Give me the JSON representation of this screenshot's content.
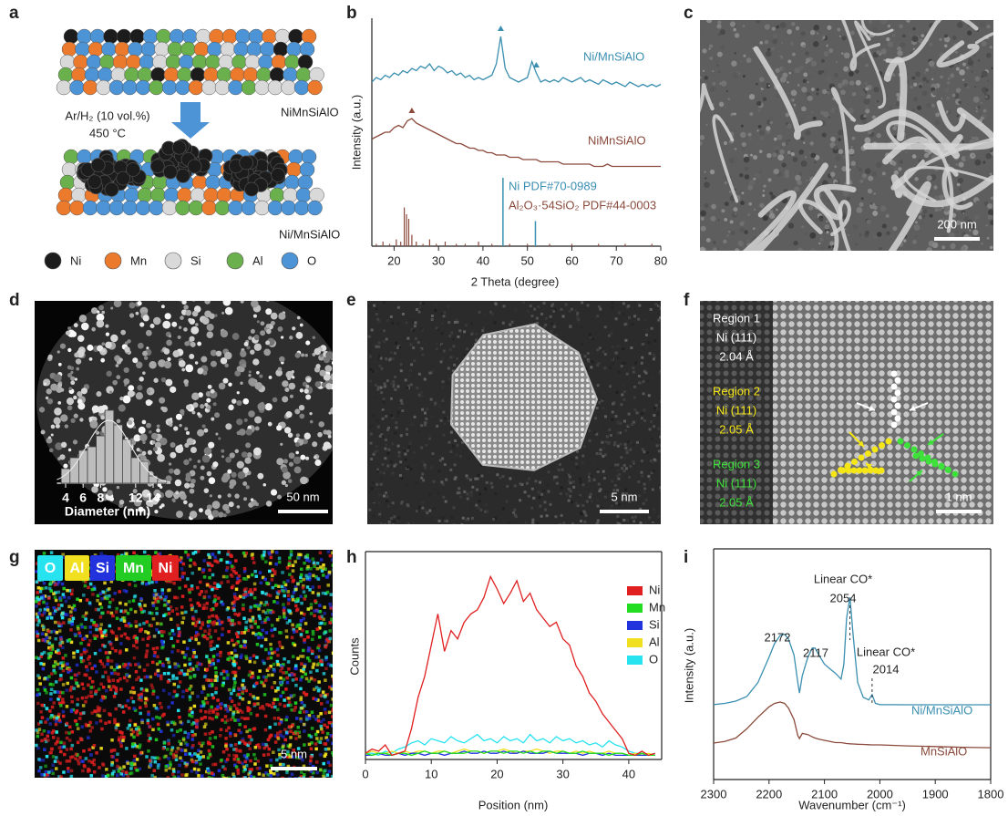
{
  "panel_labels": [
    "a",
    "b",
    "c",
    "d",
    "e",
    "f",
    "g",
    "h",
    "i"
  ],
  "schematic": {
    "top_label": "NiMnSiAlO",
    "condition": [
      "Ar/H₂ (10 vol.%)",
      "450 °C"
    ],
    "bottom_label": "Ni/MnSiAlO",
    "legend": [
      {
        "name": "Ni",
        "color": "#1c1c1c"
      },
      {
        "name": "Mn",
        "color": "#ec7a2c"
      },
      {
        "name": "Si",
        "color": "#d9d9d9"
      },
      {
        "name": "Al",
        "color": "#6ab04c"
      },
      {
        "name": "O",
        "color": "#4d94d6"
      }
    ]
  },
  "chart_data": [
    {
      "type": "line",
      "xlabel": "2 Theta (degree)",
      "ylabel": "Intensity (a.u.)",
      "xlim": [
        15,
        80
      ],
      "ylim": [
        0,
        100
      ],
      "xticks": [
        20,
        30,
        40,
        50,
        60,
        70,
        80
      ],
      "frame": false,
      "x": [
        15,
        16,
        17,
        18,
        19,
        20,
        21,
        22,
        23,
        24,
        25,
        26,
        27,
        28,
        29,
        30,
        31,
        32,
        33,
        34,
        35,
        36,
        37,
        38,
        39,
        40,
        41,
        42,
        43,
        44,
        45,
        46,
        47,
        48,
        49,
        50,
        51,
        52,
        53,
        54,
        55,
        56,
        57,
        58,
        59,
        60,
        61,
        62,
        63,
        64,
        65,
        66,
        67,
        68,
        69,
        70,
        71,
        72,
        73,
        74,
        75,
        76,
        77,
        78,
        79,
        80
      ],
      "series": [
        {
          "name": "Ni/MnSiAlO",
          "color": "#3b8fb0",
          "markers": [
            44,
            52
          ],
          "values": [
            72,
            74,
            73,
            75,
            74,
            76,
            75,
            77,
            76,
            78,
            77,
            79,
            78,
            80,
            77,
            79,
            78,
            76,
            77,
            75,
            76,
            74,
            75,
            73,
            74,
            73,
            74,
            75,
            80,
            92,
            78,
            74,
            73,
            72,
            73,
            74,
            81,
            76,
            72,
            73,
            72,
            73,
            72,
            74,
            73,
            72,
            73,
            74,
            72,
            73,
            72,
            71,
            73,
            72,
            71,
            72,
            71,
            70,
            72,
            71,
            70,
            71,
            70,
            71,
            70,
            71
          ]
        },
        {
          "name": "NiMnSiAlO",
          "color": "#8b4a3c",
          "markers": [
            24
          ],
          "values": [
            47,
            48,
            49,
            50,
            50,
            52,
            53,
            52,
            55,
            56,
            54,
            53,
            52,
            51,
            50,
            49,
            48,
            47,
            46,
            45,
            45,
            44,
            43,
            43,
            42,
            42,
            41,
            41,
            40,
            40,
            40,
            39,
            39,
            39,
            38,
            38,
            38,
            38,
            37,
            37,
            37,
            37,
            37,
            36,
            36,
            36,
            36,
            36,
            36,
            36,
            35,
            35,
            35,
            36,
            35,
            35,
            35,
            35,
            35,
            35,
            35,
            35,
            35,
            35,
            35,
            35
          ]
        }
      ],
      "references": [
        {
          "name": "Ni PDF#70-0989",
          "color": "#3b8fb0",
          "x": [
            44.5,
            51.8
          ],
          "values": [
            30,
            11
          ]
        },
        {
          "name": "Al₂O₃·54SiO₂ PDF#44-0003",
          "color": "#8b4a3c",
          "x": [
            16,
            17.5,
            19,
            20.5,
            21.5,
            22.3,
            22.8,
            23.3,
            24,
            25,
            26.5,
            28,
            29.5,
            31.5,
            34,
            36,
            39,
            42,
            46,
            50,
            55,
            60,
            66,
            72,
            78
          ],
          "values": [
            1,
            2,
            1,
            3,
            2,
            17,
            14,
            12,
            5,
            2,
            1,
            3,
            1,
            2,
            1,
            1,
            2,
            1,
            1,
            1,
            1,
            1,
            1,
            1,
            1
          ]
        }
      ]
    },
    {
      "type": "line",
      "xlabel": "Position (nm)",
      "ylabel": "Counts",
      "xlim": [
        0,
        45
      ],
      "ylim": [
        0,
        100
      ],
      "xticks": [
        0,
        10,
        20,
        30,
        40
      ],
      "frame": true,
      "legend": "top-right",
      "x": [
        0,
        1,
        2,
        3,
        4,
        5,
        6,
        7,
        8,
        9,
        10,
        11,
        12,
        13,
        14,
        15,
        16,
        17,
        18,
        19,
        20,
        21,
        22,
        23,
        24,
        25,
        26,
        27,
        28,
        29,
        30,
        31,
        32,
        33,
        34,
        35,
        36,
        37,
        38,
        39,
        40,
        41,
        42,
        43,
        44
      ],
      "series": [
        {
          "name": "Ni",
          "color": "#e02020",
          "values": [
            3,
            5,
            4,
            7,
            2,
            3,
            4,
            15,
            30,
            40,
            55,
            70,
            52,
            62,
            58,
            66,
            70,
            72,
            78,
            88,
            82,
            75,
            80,
            86,
            76,
            80,
            72,
            68,
            64,
            66,
            58,
            55,
            45,
            40,
            32,
            28,
            22,
            18,
            14,
            10,
            3,
            2,
            4,
            2,
            3
          ]
        },
        {
          "name": "Mn",
          "color": "#22dd22",
          "values": [
            3,
            2,
            3,
            3,
            2,
            3,
            3,
            2,
            3,
            4,
            3,
            3,
            4,
            3,
            3,
            3,
            4,
            4,
            3,
            4,
            4,
            3,
            4,
            4,
            3,
            4,
            3,
            4,
            4,
            3,
            4,
            3,
            3,
            4,
            3,
            3,
            3,
            2,
            3,
            3,
            2,
            2,
            3,
            2,
            2
          ]
        },
        {
          "name": "Si",
          "color": "#2233dd",
          "values": [
            2,
            2,
            3,
            2,
            2,
            3,
            2,
            3,
            3,
            2,
            3,
            3,
            2,
            3,
            3,
            4,
            3,
            3,
            4,
            3,
            3,
            4,
            3,
            3,
            4,
            3,
            3,
            3,
            4,
            3,
            3,
            3,
            3,
            2,
            3,
            3,
            2,
            3,
            2,
            2,
            2,
            2,
            2,
            2,
            2
          ]
        },
        {
          "name": "Al",
          "color": "#f0e020",
          "values": [
            3,
            4,
            3,
            3,
            4,
            3,
            4,
            3,
            4,
            4,
            3,
            4,
            4,
            3,
            4,
            5,
            4,
            4,
            3,
            4,
            4,
            5,
            4,
            3,
            4,
            4,
            5,
            4,
            3,
            4,
            4,
            3,
            4,
            3,
            4,
            3,
            3,
            4,
            3,
            3,
            2,
            3,
            2,
            3,
            2
          ]
        },
        {
          "name": "O",
          "color": "#27e3f0",
          "values": [
            3,
            3,
            2,
            4,
            3,
            5,
            6,
            8,
            9,
            7,
            10,
            9,
            8,
            11,
            9,
            8,
            10,
            12,
            9,
            10,
            8,
            11,
            9,
            10,
            8,
            12,
            9,
            10,
            8,
            11,
            9,
            10,
            8,
            9,
            7,
            8,
            6,
            9,
            7,
            6,
            4,
            3,
            3,
            2,
            3
          ]
        }
      ]
    },
    {
      "type": "line",
      "xlabel": "Wavenumber (cm⁻¹)",
      "ylabel": "Intensity (a.u.)",
      "xlim": [
        2300,
        1800
      ],
      "ylim": [
        0,
        100
      ],
      "xticks": [
        2300,
        2200,
        2100,
        2000,
        1900,
        1800
      ],
      "frame": true,
      "x": [
        2300,
        2280,
        2260,
        2240,
        2220,
        2200,
        2190,
        2180,
        2172,
        2165,
        2155,
        2148,
        2145,
        2140,
        2130,
        2122,
        2117,
        2110,
        2100,
        2090,
        2080,
        2070,
        2065,
        2060,
        2054,
        2048,
        2040,
        2030,
        2020,
        2014,
        2008,
        2000,
        1950,
        1900,
        1850,
        1800
      ],
      "series": [
        {
          "name": "Ni/MnSiAlO",
          "color": "#3b8fb0",
          "values": [
            32.5,
            33,
            34,
            36,
            42,
            53,
            59,
            62.5,
            63,
            61,
            54,
            42,
            37.5,
            45,
            53,
            57,
            57,
            54,
            50,
            48,
            46,
            43.5,
            50,
            70,
            79,
            62,
            42,
            35.6,
            34.5,
            36.8,
            33,
            32.5,
            32.4,
            32.4,
            32.4,
            32.4
          ]
        },
        {
          "name": "MnSiAlO",
          "color": "#8b4a3c",
          "values": [
            15.8,
            16.5,
            18,
            22,
            27,
            31.5,
            33,
            33.6,
            33,
            31,
            26,
            19,
            17.8,
            20,
            19.5,
            18.5,
            18,
            17.5,
            17,
            16.5,
            16,
            16,
            15.8,
            15.6,
            15.5,
            15.4,
            15.3,
            15.2,
            15.1,
            15,
            15,
            15,
            14.6,
            14.3,
            14,
            13.8
          ]
        }
      ],
      "annotations": [
        "2172",
        "2117",
        "Linear CO*",
        "2054",
        "Linear CO*",
        "2014"
      ],
      "dashed_x": [
        2054,
        2014
      ]
    },
    {
      "type": "histogram",
      "xlabel": "Diameter (nm)",
      "xlim": [
        3,
        16
      ],
      "ylim": [
        0,
        20
      ],
      "xticks": [
        4,
        6,
        8,
        12,
        14
      ],
      "color": "#bdbdbd",
      "bins": [
        3.5,
        4.5,
        5.5,
        6.5,
        7.5,
        8.5,
        9.5,
        10.5,
        11.5,
        12.5,
        13.5,
        14.5,
        15.5
      ],
      "values": [
        4,
        7,
        9,
        10,
        13,
        20,
        16,
        12,
        7,
        6,
        2,
        1
      ]
    }
  ],
  "images": {
    "c": {
      "scale_bar": "200 nm"
    },
    "d": {
      "scale_bar": "50 nm"
    },
    "e": {
      "scale_bar": "5 nm"
    },
    "f": {
      "scale_bar": "1 nm",
      "regions": [
        {
          "lines": [
            "Region 1",
            "Ni (111)",
            "2.04 Å"
          ],
          "color": "#ffffff"
        },
        {
          "lines": [
            "Region 2",
            "Ni (111)",
            "2.05 Å"
          ],
          "color": "#f5e616"
        },
        {
          "lines": [
            "Region 3",
            "Ni (111)",
            "2.05 Å"
          ],
          "color": "#3ee03a"
        }
      ]
    },
    "g": {
      "scale_bar": "5 nm",
      "elements": [
        {
          "label": "O",
          "color": "#27e3f0"
        },
        {
          "label": "Al",
          "color": "#f0e020"
        },
        {
          "label": "Si",
          "color": "#2233dd"
        },
        {
          "label": "Mn",
          "color": "#22cc22"
        },
        {
          "label": "Ni",
          "color": "#e02020"
        }
      ]
    }
  }
}
